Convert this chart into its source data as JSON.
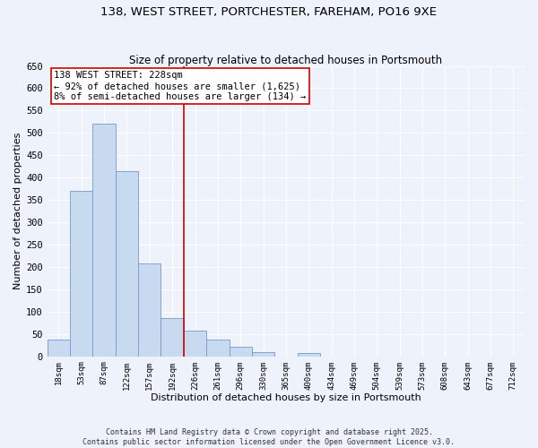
{
  "title": "138, WEST STREET, PORTCHESTER, FAREHAM, PO16 9XE",
  "subtitle": "Size of property relative to detached houses in Portsmouth",
  "xlabel": "Distribution of detached houses by size in Portsmouth",
  "ylabel": "Number of detached properties",
  "bar_color": "#c8daf0",
  "bar_edge_color": "#7799cc",
  "background_color": "#eef2fa",
  "grid_color": "#ffffff",
  "bin_labels": [
    "18sqm",
    "53sqm",
    "87sqm",
    "122sqm",
    "157sqm",
    "192sqm",
    "226sqm",
    "261sqm",
    "296sqm",
    "330sqm",
    "365sqm",
    "400sqm",
    "434sqm",
    "469sqm",
    "504sqm",
    "539sqm",
    "573sqm",
    "608sqm",
    "643sqm",
    "677sqm",
    "712sqm"
  ],
  "bar_heights": [
    37,
    370,
    520,
    415,
    207,
    85,
    57,
    37,
    22,
    10,
    0,
    8,
    0,
    0,
    0,
    0,
    0,
    0,
    0,
    0,
    0
  ],
  "property_line_color": "#cc0000",
  "annotation_line1": "138 WEST STREET: 228sqm",
  "annotation_line2": "← 92% of detached houses are smaller (1,625)",
  "annotation_line3": "8% of semi-detached houses are larger (134) →",
  "annotation_box_color": "#ffffff",
  "annotation_border_color": "#cc0000",
  "ylim": [
    0,
    650
  ],
  "yticks": [
    0,
    50,
    100,
    150,
    200,
    250,
    300,
    350,
    400,
    450,
    500,
    550,
    600,
    650
  ],
  "footnote1": "Contains HM Land Registry data © Crown copyright and database right 2025.",
  "footnote2": "Contains public sector information licensed under the Open Government Licence v3.0."
}
